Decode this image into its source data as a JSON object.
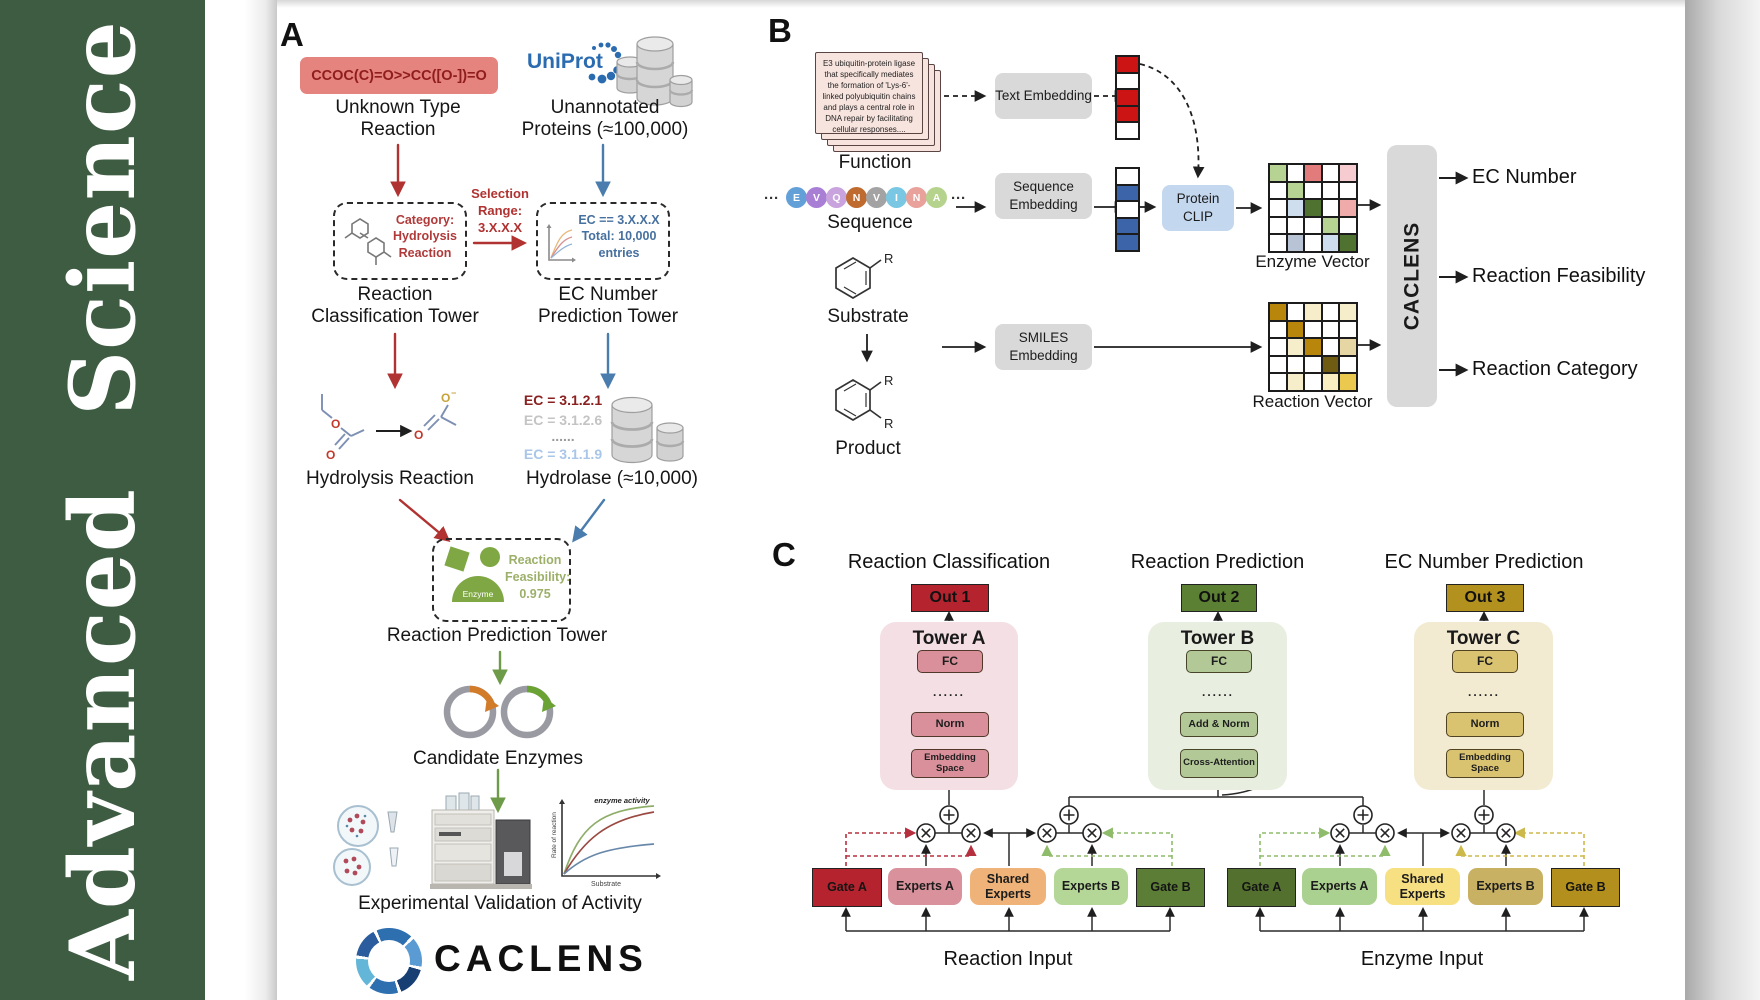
{
  "journal": {
    "name": "Advanced Science"
  },
  "a": {
    "panel_label": "A",
    "smiles": "CCOC(C)=O>>CC([O-])=O",
    "unknown": "Unknown Type Reaction",
    "uniprot": "UniProt",
    "unannotated": "Unannotated Proteins (≈100,000)",
    "selection": "Selection Range: 3.X.X.X",
    "category": "Category: Hydrolysis Reaction",
    "ec_filter": "EC == 3.X.X.X Total: 10,000 entries",
    "tower1": "Reaction Classification Tower",
    "tower2": "EC Number Prediction Tower",
    "ec_list": [
      "EC = 3.1.2.1",
      "EC = 3.1.2.6",
      "......",
      "EC = 3.1.1.9"
    ],
    "hydrolysis": "Hydrolysis Reaction",
    "hydrolase": "Hydrolase (≈10,000)",
    "enzyme": "Enzyme",
    "feasibility": "Reaction Feasibility: 0.975",
    "tower3": "Reaction Prediction Tower",
    "candidates": "Candidate Enzymes",
    "validation": "Experimental Validation of Activity",
    "graph": {
      "title": "enzyme activity",
      "ylabel": "Rate of reaction",
      "xlabel": "Substrate"
    },
    "brand": "CACLENS",
    "colors": {
      "smiles_box": "#e5837f"
    }
  },
  "b": {
    "panel_label": "B",
    "function_text": "E3 ubiquitin-protein ligase that specifically mediates the formation of 'Lys-6'-linked polyubiquitin chains and plays a central role in DNA repair by facilitating cellular responses....",
    "function": "Function",
    "ellipsis": "···",
    "seq": [
      {
        "ch": "E",
        "color": "#63a0d8"
      },
      {
        "ch": "V",
        "color": "#a97fd6"
      },
      {
        "ch": "Q",
        "color": "#c9a3de"
      },
      {
        "ch": "N",
        "color": "#bf6a2f"
      },
      {
        "ch": "V",
        "color": "#a3a3a3"
      },
      {
        "ch": "I",
        "color": "#79c7e3"
      },
      {
        "ch": "N",
        "color": "#e8a29b"
      },
      {
        "ch": "A",
        "color": "#b6d38e"
      }
    ],
    "sequence": "Sequence",
    "substrate": "Substrate",
    "product": "Product",
    "r": "R",
    "text_embedding": "Text Embedding",
    "sequence_embedding": "Sequence Embedding",
    "smiles_embedding": "SMILES Embedding",
    "protein_clip": "Protein CLIP",
    "text_vector": [
      "#cc1414",
      "#ffffff",
      "#cc1414",
      "#cc1414",
      "#ffffff"
    ],
    "seq_vector": [
      "#ffffff",
      "#3c64a8",
      "#ffffff",
      "#3c64a8",
      "#3c64a8"
    ],
    "enzyme_grid": [
      [
        "#b7d394",
        "#ffffff",
        "#e27b7b",
        "#ffffff",
        "#f6ccd1"
      ],
      [
        "#ffffff",
        "#b7d394",
        "#ffffff",
        "#ffffff",
        "#ffffff"
      ],
      [
        "#ffffff",
        "#cfdeef",
        "#4f7231",
        "#ffffff",
        "#efaaaa"
      ],
      [
        "#ffffff",
        "#ffffff",
        "#ffffff",
        "#b7d394",
        "#ffffff"
      ],
      [
        "#ffffff",
        "#b8c4d6",
        "#ffffff",
        "#cfdeef",
        "#4f7231"
      ]
    ],
    "reaction_grid": [
      [
        "#b8860b",
        "#ffffff",
        "#f6eecb",
        "#ffffff",
        "#f6eecb"
      ],
      [
        "#ffffff",
        "#b8860b",
        "#ffffff",
        "#ffffff",
        "#ffffff"
      ],
      [
        "#ffffff",
        "#f6eecb",
        "#b8860b",
        "#ffffff",
        "#e6d6a3"
      ],
      [
        "#ffffff",
        "#ffffff",
        "#ffffff",
        "#6f5c12",
        "#ffffff"
      ],
      [
        "#ffffff",
        "#f6eecb",
        "#ffffff",
        "#f8eec2",
        "#eac94e"
      ]
    ],
    "enzyme_vector_label": "Enzyme Vector",
    "reaction_vector_label": "Reaction Vector",
    "model": "CACLENS",
    "outputs": [
      "EC Number",
      "Reaction Feasibility",
      "Reaction Category"
    ],
    "colors": {
      "clip": "#c3d7ef",
      "embedding": "#d9d9d9"
    }
  },
  "c": {
    "panel_label": "C",
    "headings": [
      "Reaction Classification",
      "Reaction Prediction",
      "EC Number Prediction"
    ],
    "outs": [
      {
        "label": "Out 1",
        "color": "#b5232f"
      },
      {
        "label": "Out 2",
        "color": "#5b7f33"
      },
      {
        "label": "Out 3",
        "color": "#b3911f"
      }
    ],
    "towers": [
      {
        "name": "Tower A",
        "fc": "FC",
        "dots": "......",
        "mid": "Norm",
        "base": "Embedding Space",
        "bg": "#f4dfe4",
        "box": "#d9909b"
      },
      {
        "name": "Tower B",
        "fc": "FC",
        "dots": "......",
        "mid": "Add & Norm",
        "base": "Cross-Attention",
        "bg": "#e9efe0",
        "box": "#b2c897"
      },
      {
        "name": "Tower C",
        "fc": "FC",
        "dots": "......",
        "mid": "Norm",
        "base": "Embedding Space",
        "bg": "#f3ebd1",
        "box": "#d9c270"
      }
    ],
    "moe": [
      {
        "gate_a": "Gate A",
        "experts_a": "Experts A",
        "shared": "Shared Experts",
        "experts_b": "Experts B",
        "gate_b": "Gate B",
        "input": "Reaction Input",
        "colors": {
          "gate_a": "#b5232f",
          "experts_a": "#d9919c",
          "shared": "#efb379",
          "experts_b": "#b4d797",
          "gate_b": "#5b7d36"
        }
      },
      {
        "gate_a": "Gate A",
        "experts_a": "Experts A",
        "shared": "Shared Experts",
        "experts_b": "Experts B",
        "gate_b": "Gate B",
        "input": "Enzyme Input",
        "colors": {
          "gate_a": "#53702f",
          "experts_a": "#abd190",
          "shared": "#f7e081",
          "experts_b": "#c9b163",
          "gate_b": "#b3901d"
        }
      }
    ]
  }
}
